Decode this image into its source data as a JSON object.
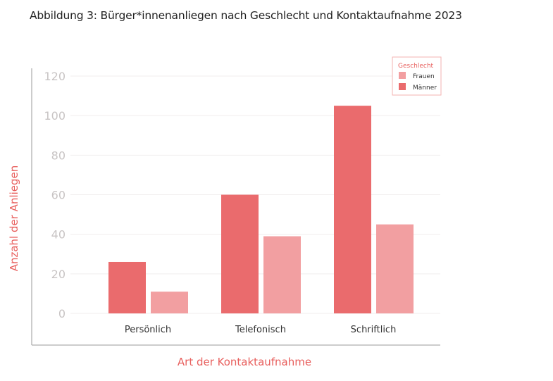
{
  "title": "Abbildung 3: Bürger*innenanliegen nach Geschlecht und Kontaktaufnahme 2023",
  "chart_data": {
    "type": "bar",
    "title": "Abbildung 3: Bürger*innenanliegen nach Geschlecht und Kontaktaufnahme 2023",
    "xlabel": "Art der Kontaktaufnahme",
    "ylabel": "Anzahl der Anliegen",
    "categories": [
      "Persönlich",
      "Telefonisch",
      "Schriftlich"
    ],
    "series": [
      {
        "name": "Männer",
        "values": [
          26,
          60,
          105
        ],
        "color": "#ea6b6d"
      },
      {
        "name": "Frauen",
        "values": [
          11,
          39,
          45
        ],
        "color": "#f29fa1"
      }
    ],
    "ylim": [
      0,
      120
    ],
    "yticks": [
      0,
      20,
      40,
      60,
      80,
      100,
      120
    ],
    "grid": true,
    "legend": {
      "title": "Geschlecht",
      "placement": "top-right",
      "entries": [
        "Frauen",
        "Männer"
      ]
    }
  }
}
